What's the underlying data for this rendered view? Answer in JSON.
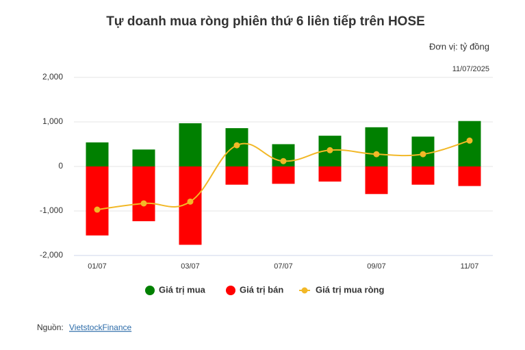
{
  "chart_data": {
    "type": "bar-line",
    "title": "Tự doanh mua ròng phiên thứ 6 liên tiếp trên HOSE",
    "unit": "Đơn vị: tỷ đồng",
    "date": "11/07/2025",
    "source_label": "Nguồn: ",
    "source_link": "VietstockFinance",
    "categories": [
      "01/07",
      null,
      "03/07",
      null,
      "07/07",
      null,
      "09/07",
      null,
      "11/07"
    ],
    "series": [
      {
        "name": "Giá trị mua",
        "color": "#008000",
        "kind": "bar",
        "values": [
          540,
          380,
          970,
          860,
          500,
          690,
          880,
          670,
          1020
        ]
      },
      {
        "name": "Giá trị bán",
        "color": "#ff0000",
        "kind": "bar",
        "values": [
          -1550,
          -1230,
          -1760,
          -410,
          -390,
          -340,
          -620,
          -410,
          -440
        ]
      },
      {
        "name": "Giá trị mua ròng",
        "color": "#f2b827",
        "kind": "line",
        "values": [
          -970,
          -830,
          -790,
          475,
          120,
          365,
          275,
          275,
          580
        ]
      }
    ],
    "ylim": [
      -2000,
      2000
    ],
    "yticks": [
      {
        "value": -2000,
        "label": "-2,000"
      },
      {
        "value": -1000,
        "label": "-1,000"
      },
      0,
      {
        "value": 1000,
        "label": "1,000"
      },
      {
        "value": 2000,
        "label": "2,000"
      }
    ],
    "grid": true
  }
}
